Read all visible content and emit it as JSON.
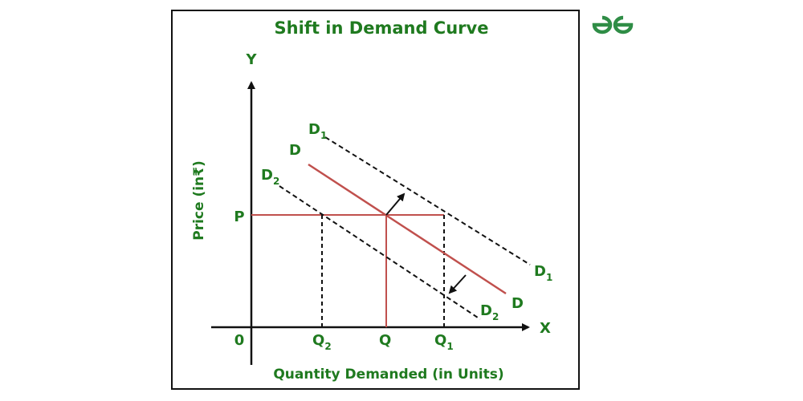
{
  "title": "Shift in Demand Curve",
  "logo": {
    "icon": "gfg-logo-icon",
    "color": "#2f8d46"
  },
  "colors": {
    "label_green": "#1f7a1f",
    "curve_red": "#c0504d",
    "line_black": "#111111"
  },
  "axes": {
    "y_axis_letter": "Y",
    "x_axis_letter": "X",
    "y_title": "Price (in₹)",
    "x_title": "Quantity Demanded (in Units)",
    "origin_label": "0",
    "price_label": "P",
    "quantity_labels": {
      "q2": {
        "base": "Q",
        "sub": "2"
      },
      "q": {
        "base": "Q",
        "sub": ""
      },
      "q1": {
        "base": "Q",
        "sub": "1"
      }
    }
  },
  "curves": {
    "d1": {
      "base": "D",
      "sub": "1",
      "style": "dashed"
    },
    "d": {
      "base": "D",
      "sub": "",
      "style": "solid"
    },
    "d2": {
      "base": "D",
      "sub": "2",
      "style": "dashed"
    }
  },
  "arrows": [
    {
      "name": "shift-right-arrow",
      "direction": "up-right"
    },
    {
      "name": "shift-left-arrow",
      "direction": "down-left"
    }
  ]
}
